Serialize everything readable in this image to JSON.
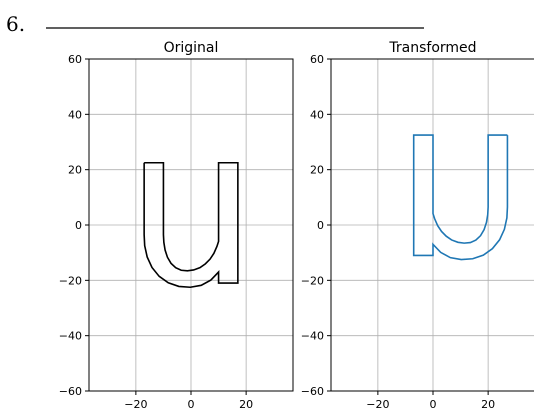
{
  "question": {
    "number": "6."
  },
  "chart_data": [
    {
      "type": "line",
      "title": "Original",
      "xlabel": "",
      "ylabel": "",
      "xlim": [
        -37,
        37
      ],
      "ylim": [
        -60,
        60
      ],
      "xticks": [
        -20,
        0,
        20
      ],
      "yticks": [
        -60,
        -40,
        -20,
        0,
        20,
        40,
        60
      ],
      "xtick_labels": [
        "−20",
        "0",
        "20"
      ],
      "ytick_labels": [
        "−60",
        "−40",
        "−20",
        "0",
        "20",
        "40",
        "60"
      ],
      "grid": true,
      "color": "#000000",
      "series": [
        {
          "x": [
            -17,
            -10,
            -10,
            -9.85,
            -9.4,
            -8.55,
            -7.25,
            -5.55,
            -3.55,
            -1.3,
            0.95,
            3.25,
            5.2,
            6.9,
            8.3,
            9.4,
            10,
            10,
            17,
            17,
            10,
            10,
            7.2,
            3.7,
            -0.25,
            -4.4,
            -8.25,
            -11.55,
            -14.15,
            -15.9,
            -16.8,
            -17,
            -17
          ],
          "y": [
            22.5,
            22.5,
            -3.5,
            -6.3,
            -9.05,
            -11.65,
            -13.85,
            -15.45,
            -16.35,
            -16.55,
            -16.25,
            -15.4,
            -14.05,
            -12.35,
            -10.25,
            -7.75,
            -5.9,
            22.5,
            22.5,
            -21,
            -21,
            -17,
            -19.9,
            -21.8,
            -22.5,
            -22.2,
            -20.9,
            -18.55,
            -15.35,
            -11.55,
            -7.45,
            -3.5,
            22.5
          ]
        }
      ]
    },
    {
      "type": "line",
      "title": "Transformed",
      "xlabel": "",
      "ylabel": "",
      "xlim": [
        -37,
        37
      ],
      "ylim": [
        -60,
        60
      ],
      "xticks": [
        -20,
        0,
        20
      ],
      "yticks": [
        -60,
        -40,
        -20,
        0,
        20,
        40,
        60
      ],
      "xtick_labels": [
        "−20",
        "0",
        "20"
      ],
      "ytick_labels": [
        "−60",
        "−40",
        "−20",
        "0",
        "20",
        "40",
        "60"
      ],
      "grid": true,
      "color": "#1f77b4",
      "series": [
        {
          "x": [
            27,
            20,
            20,
            19.85,
            19.4,
            18.55,
            17.25,
            15.55,
            13.55,
            11.3,
            9.05,
            6.75,
            4.8,
            3.1,
            1.7,
            0.6,
            0,
            0,
            -7,
            -7,
            0,
            0,
            2.8,
            6.3,
            10.25,
            14.4,
            18.25,
            21.55,
            24.15,
            25.9,
            26.8,
            27,
            27
          ],
          "y": [
            32.5,
            32.5,
            6.5,
            3.7,
            0.95,
            -1.65,
            -3.85,
            -5.45,
            -6.35,
            -6.55,
            -6.25,
            -5.4,
            -4.05,
            -2.35,
            -0.25,
            2.25,
            4.1,
            32.5,
            32.5,
            -11,
            -11,
            -7,
            -9.9,
            -11.8,
            -12.5,
            -12.2,
            -10.9,
            -8.55,
            -5.35,
            -1.55,
            2.55,
            6.5,
            32.5
          ]
        }
      ]
    }
  ]
}
